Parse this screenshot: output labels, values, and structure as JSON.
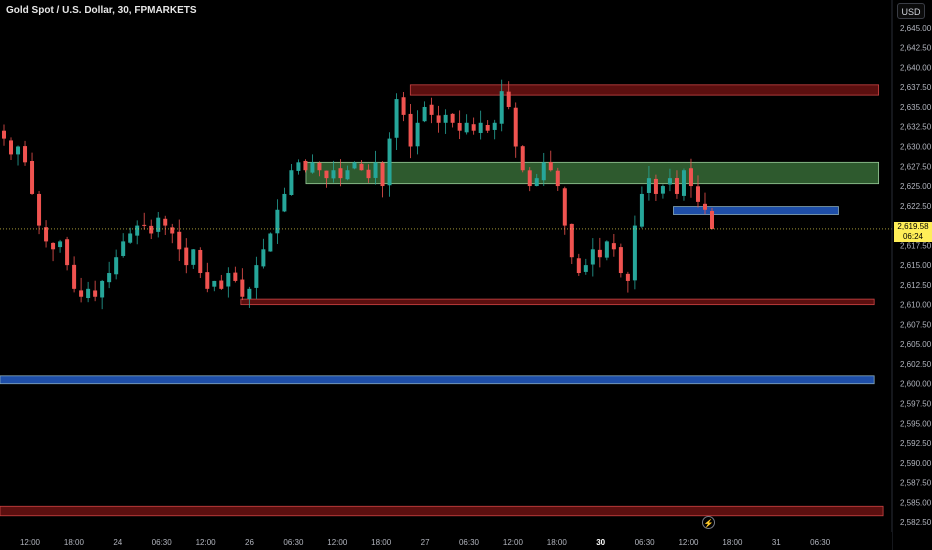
{
  "header": {
    "title": "Gold Spot / U.S. Dollar, 30, FPMARKETS",
    "currency_button": "USD"
  },
  "last_price": {
    "value": "2,619.58",
    "countdown": "06:24"
  },
  "icons": {
    "replay": "lightning-icon"
  },
  "colors": {
    "background": "#000000",
    "bull": "#26a69a",
    "bear": "#ef5350",
    "supply_zone": "#5b0f0f",
    "demand_zone": "#2e5a2e",
    "blue_zone": "#1e4ea8"
  },
  "chart_data": {
    "type": "candlestick",
    "ylim": [
      2581.5,
      2646
    ],
    "y_ticks": [
      "2,645.00",
      "2,642.50",
      "2,640.00",
      "2,637.50",
      "2,635.00",
      "2,632.50",
      "2,630.00",
      "2,627.50",
      "2,625.00",
      "2,622.50",
      "2,620.00",
      "2,617.50",
      "2,615.00",
      "2,612.50",
      "2,610.00",
      "2,607.50",
      "2,605.00",
      "2,602.50",
      "2,600.00",
      "2,597.50",
      "2,595.00",
      "2,592.50",
      "2,590.00",
      "2,587.50",
      "2,585.00",
      "2,582.50"
    ],
    "x_ticks": [
      "12:00",
      "18:00",
      "24",
      "06:30",
      "12:00",
      "26",
      "06:30",
      "12:00",
      "18:00",
      "27",
      "06:30",
      "12:00",
      "18:00",
      "30",
      "06:30",
      "12:00",
      "18:00",
      "31",
      "06:30"
    ],
    "x_ticks_bold": [
      "30"
    ],
    "close_path": [
      2631,
      2629,
      2630,
      2628,
      2624,
      2620,
      2618,
      2617,
      2618,
      2615,
      2612,
      2611,
      2612,
      2611,
      2613,
      2614,
      2616,
      2618,
      2619,
      2620,
      2620,
      2619,
      2621,
      2620,
      2619,
      2617,
      2615,
      2617,
      2614,
      2612,
      2613,
      2612,
      2614,
      2613,
      2611,
      2612,
      2615,
      2617,
      2619,
      2622,
      2624,
      2627,
      2628,
      2627,
      2628,
      2627,
      2626,
      2627,
      2626,
      2627,
      2628,
      2627,
      2626,
      2628,
      2625,
      2631,
      2636,
      2634,
      2630,
      2633,
      2635,
      2634,
      2633,
      2634,
      2633,
      2632,
      2633,
      2632,
      2633,
      2632,
      2633,
      2637,
      2635,
      2630,
      2627,
      2625,
      2626,
      2628,
      2627,
      2625,
      2620,
      2616,
      2614,
      2615,
      2617,
      2616,
      2618,
      2617,
      2614,
      2613,
      2620,
      2624,
      2626,
      2624,
      2625,
      2626,
      2624,
      2627,
      2625,
      2623,
      2622,
      2619.58
    ],
    "zones": [
      {
        "type": "supply",
        "y_top": 2637.8,
        "y_bottom": 2636.5,
        "x_start": 0.46,
        "x_end": 0.985
      },
      {
        "type": "demand",
        "y_top": 2628,
        "y_bottom": 2625.3,
        "x_start": 0.343,
        "x_end": 0.985
      },
      {
        "type": "resistance",
        "y_top": 2622.4,
        "y_bottom": 2621.4,
        "x_start": 0.755,
        "x_end": 0.94
      },
      {
        "type": "support",
        "y_top": 2610.7,
        "y_bottom": 2610,
        "x_start": 0.27,
        "x_end": 0.98
      },
      {
        "type": "support-blue",
        "y_top": 2601,
        "y_bottom": 2600,
        "x_start": 0.0,
        "x_end": 0.98
      },
      {
        "type": "support-deep",
        "y_top": 2584.5,
        "y_bottom": 2583.3,
        "x_start": 0.0,
        "x_end": 0.99
      }
    ]
  }
}
